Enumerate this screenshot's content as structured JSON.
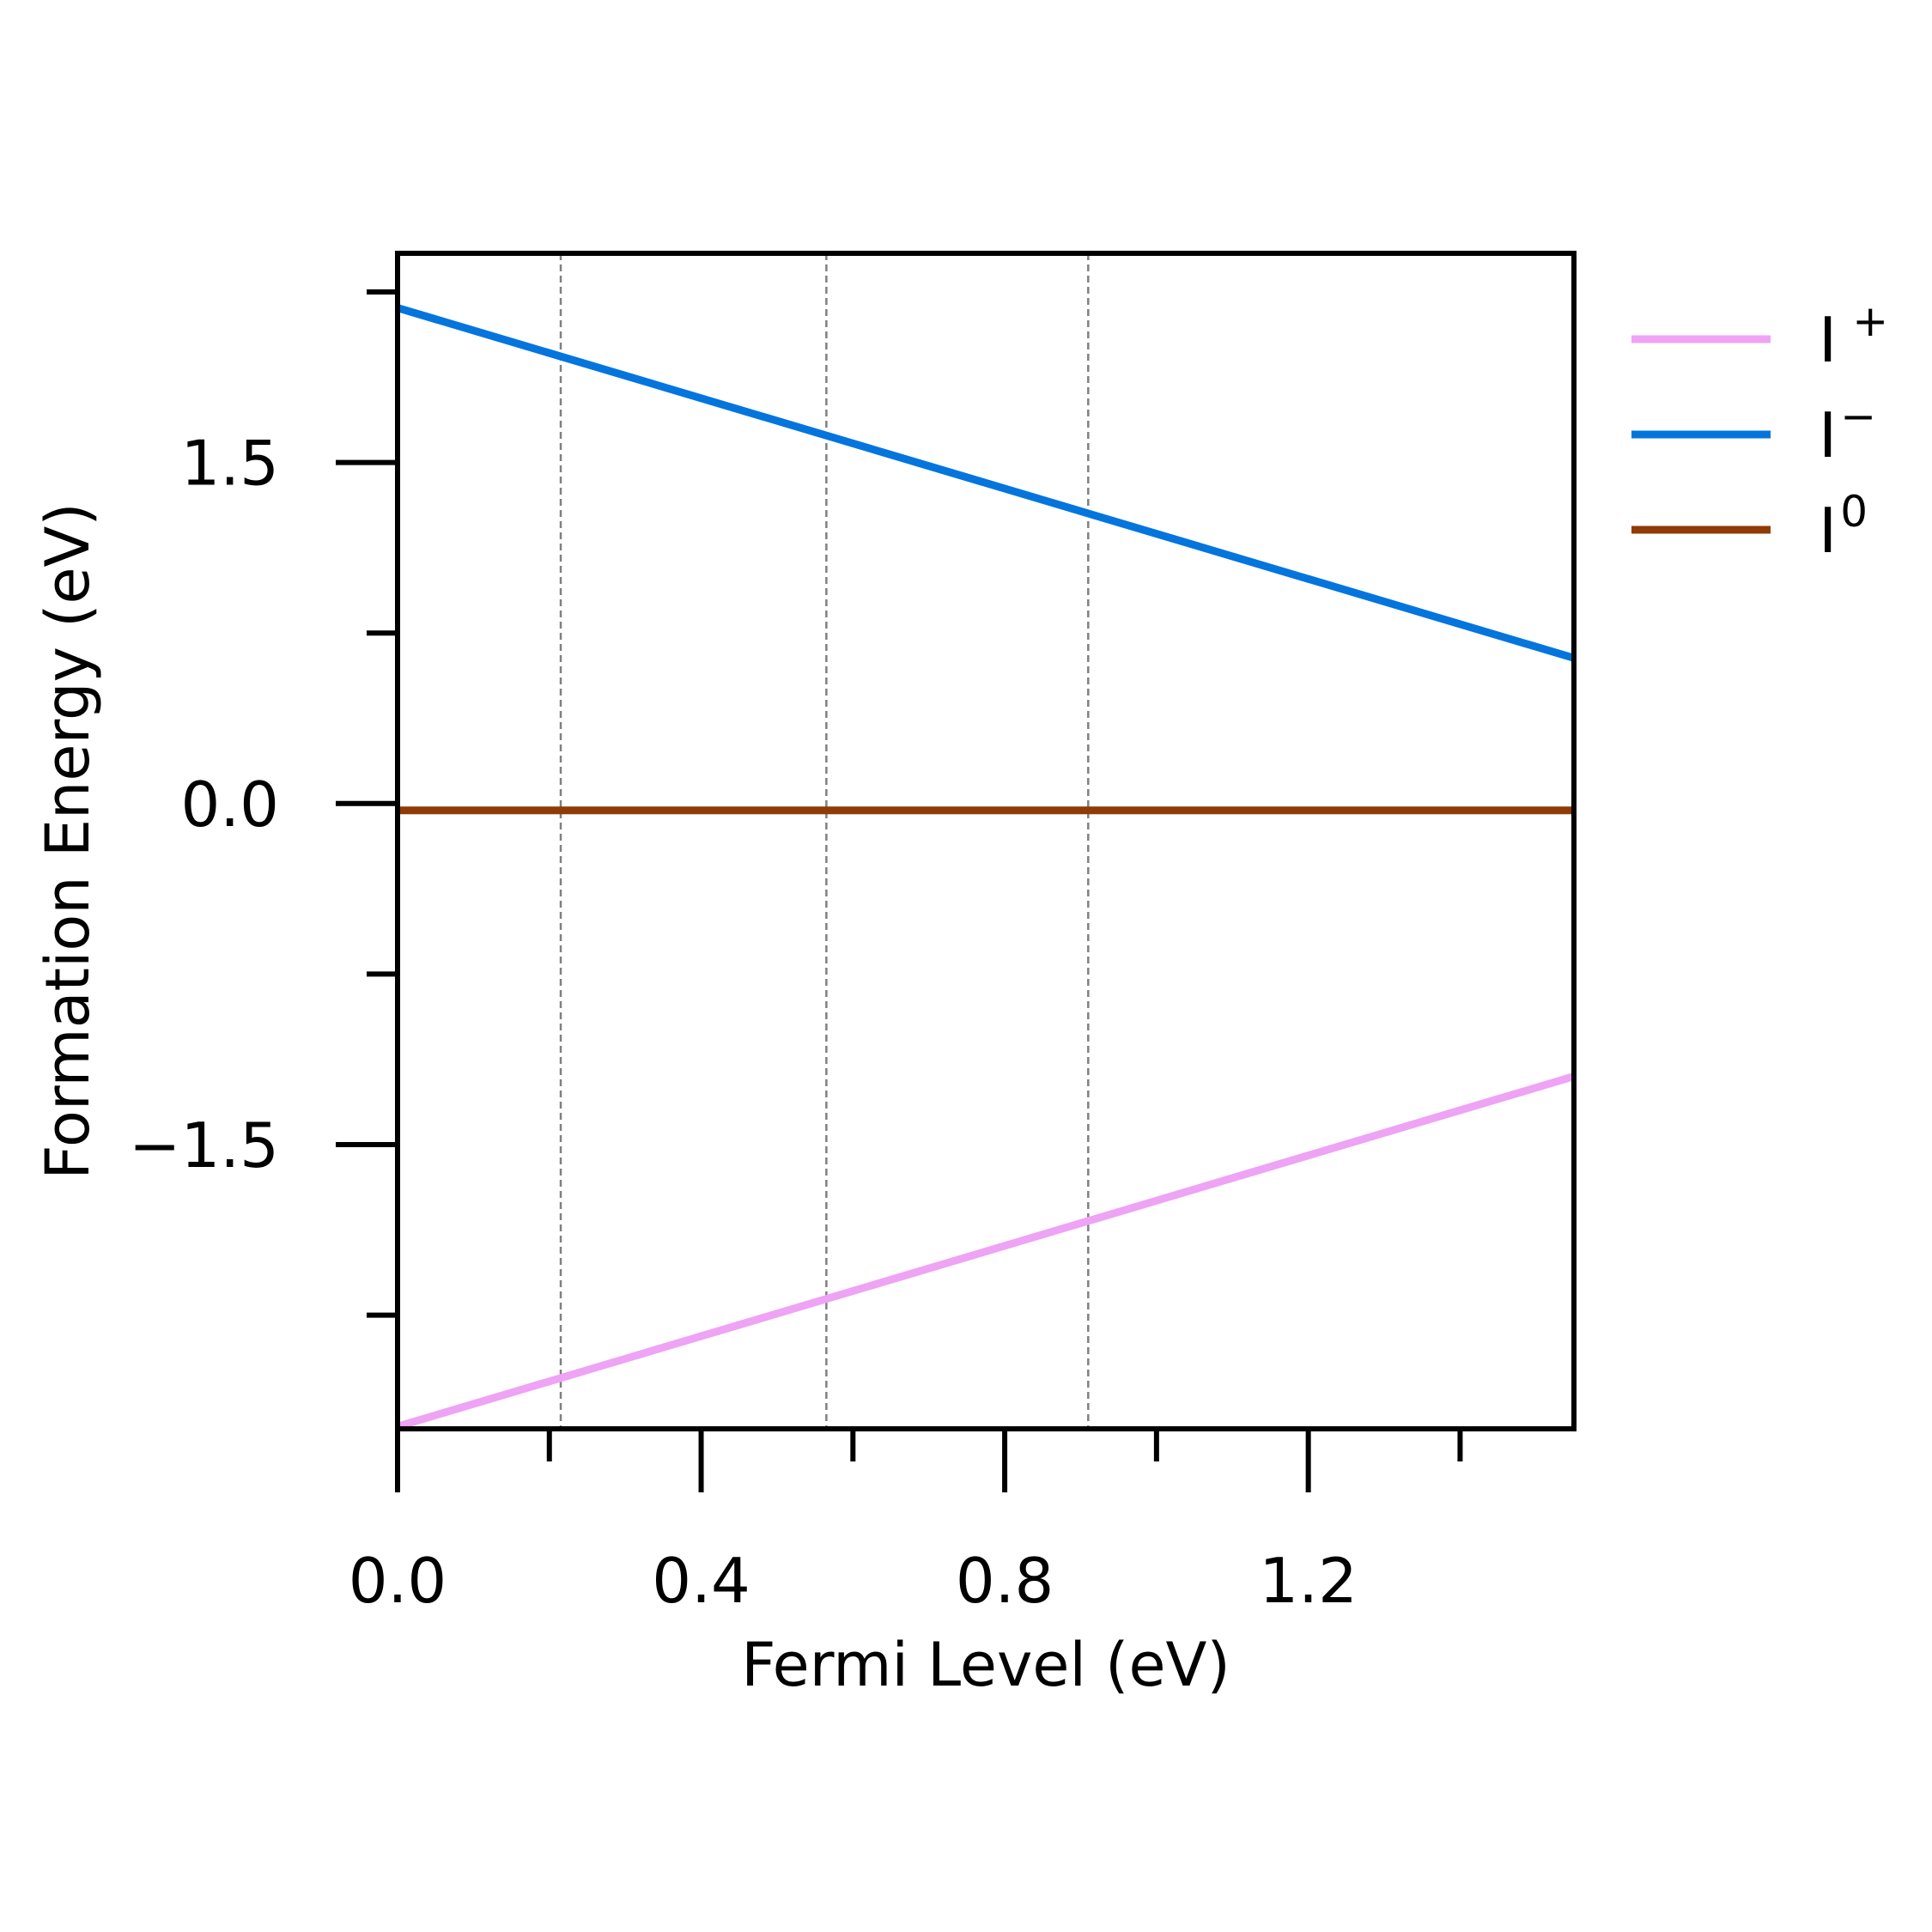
{
  "chart_data": {
    "type": "line",
    "title": "",
    "xlabel": "Fermi Level (eV)",
    "ylabel": "Formation Energy (eV)",
    "xlim": [
      0.0,
      1.55
    ],
    "ylim": [
      -2.75,
      2.42
    ],
    "x_major_ticks": [
      0.0,
      0.4,
      0.8,
      1.2
    ],
    "x_major_tick_labels": [
      "0.0",
      "0.4",
      "0.8",
      "1.2"
    ],
    "x_minor_ticks": [
      0.2,
      0.6,
      1.0,
      1.4
    ],
    "y_major_ticks": [
      -1.5,
      0.0,
      1.5
    ],
    "y_major_tick_labels": [
      "−1.5",
      "0.0",
      "1.5"
    ],
    "y_minor_ticks": [
      -2.25,
      -0.75,
      0.75,
      2.25
    ],
    "transition_levels": [
      0.215,
      0.565,
      0.91
    ],
    "grid": false,
    "legend_position": "outside-right",
    "series": [
      {
        "name": "I",
        "charge": "+",
        "color": "#eea3f5",
        "x": [
          0.0,
          1.55
        ],
        "y": [
          -2.74,
          -1.2
        ]
      },
      {
        "name": "I",
        "charge": "−",
        "color": "#0475dd",
        "x": [
          0.0,
          1.55
        ],
        "y": [
          2.18,
          0.64
        ]
      },
      {
        "name": "I",
        "charge": "0",
        "color": "#8f3b07",
        "x": [
          0.0,
          1.55
        ],
        "y": [
          -0.03,
          -0.03
        ]
      }
    ]
  }
}
